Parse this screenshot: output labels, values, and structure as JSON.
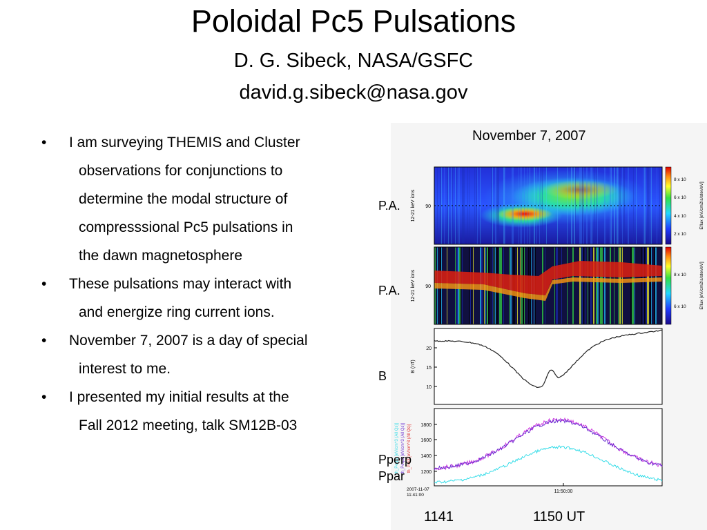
{
  "slide": {
    "title": "Poloidal Pc5 Pulsations",
    "author": "D. G. Sibeck, NASA/GSFC",
    "email": "david.g.sibeck@nasa.gov"
  },
  "bullets": [
    {
      "lines": [
        "I am surveying THEMIS and Cluster",
        "observations for conjunctions to",
        "determine the modal structure of",
        "compresssional Pc5 pulsations in",
        "the dawn magnetosphere"
      ]
    },
    {
      "lines": [
        "These pulsations may interact with",
        "and energize ring current ions."
      ]
    },
    {
      "lines": [
        "November 7, 2007 is a day of special",
        "interest to me."
      ]
    },
    {
      "lines": [
        "I presented my initial results at the",
        "Fall 2012 meeting, talk SM12B-03"
      ]
    }
  ],
  "figure": {
    "date": "November 7, 2007",
    "panel_labels": [
      "P.A.",
      "P.A.",
      "B",
      "Pperp",
      "Ppar"
    ],
    "x_start_label": "1141",
    "x_end_label": "1150 UT",
    "panel1": {
      "ylabel": "12-21 keV ions",
      "ytick": "90",
      "colorbar_title": "Eflux [eV/cm2/s/ster/eV]",
      "colorbar_ticks": [
        "8 x 10",
        "6 x 10",
        "4 x 10",
        "2 x 10"
      ]
    },
    "panel2": {
      "ylabel": "12-21 keV ions",
      "ytick": "90",
      "colorbar_title": "Eflux [eV/cm2/s/ster/eV]",
      "colorbar_ticks": [
        "8 x 10",
        "6 x 10"
      ]
    },
    "panel3": {
      "ylabel": "B (nT)",
      "yticks": [
        "20",
        "15",
        "10"
      ]
    },
    "panel4": {
      "yticks": [
        "1800",
        "1600",
        "1400",
        "1200"
      ],
      "xtick": "11:50:00",
      "legend": [
        "th_Perp2 [eV/cm^3 (All Qs)]",
        "th_Perp3 [eV/cm^3 (All Qs)]",
        "th_Par3 [eV/cm^3 (All Qs)]"
      ],
      "date_label": "2007-11-07",
      "time_label": "11:41:00"
    }
  },
  "colors": {
    "perp": "#6a2fd0",
    "perp2": "#d03be0",
    "par": "#33dce8",
    "bfield": "#222222"
  }
}
